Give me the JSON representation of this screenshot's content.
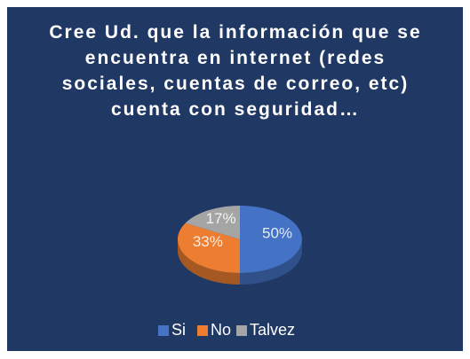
{
  "chart_data": {
    "type": "pie",
    "title": "Cree Ud. que la información que se encuentra en internet (redes sociales, cuentas de correo, etc) cuenta con seguridad…",
    "categories": [
      "Si",
      "No",
      "Talvez"
    ],
    "values": [
      50,
      33,
      17
    ],
    "value_labels": [
      "50%",
      "33%",
      "17%"
    ],
    "colors": [
      "#4472c4",
      "#ed7d31",
      "#a5a5a5"
    ],
    "legend": "bottom"
  }
}
